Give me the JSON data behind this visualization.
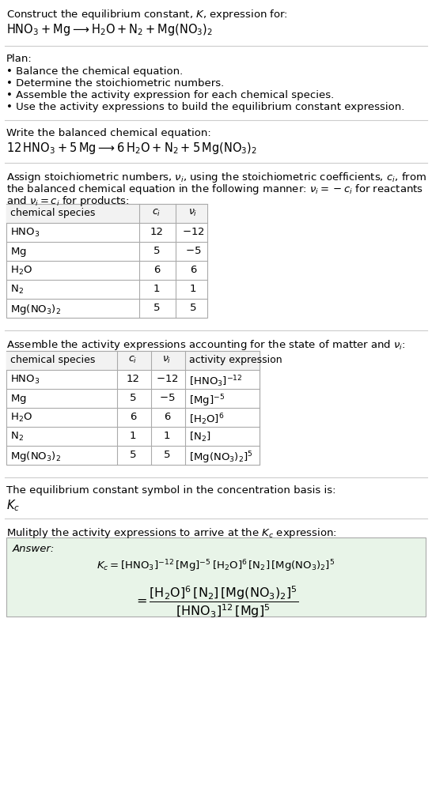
{
  "title_line1": "Construct the equilibrium constant, $K$, expression for:",
  "title_line2": "$\\mathrm{HNO_3} + \\mathrm{Mg} \\longrightarrow \\mathrm{H_2O} + \\mathrm{N_2} + \\mathrm{Mg(NO_3)_2}$",
  "plan_header": "Plan:",
  "plan_items": [
    "• Balance the chemical equation.",
    "• Determine the stoichiometric numbers.",
    "• Assemble the activity expression for each chemical species.",
    "• Use the activity expressions to build the equilibrium constant expression."
  ],
  "balanced_header": "Write the balanced chemical equation:",
  "balanced_eq": "$12\\,\\mathrm{HNO_3} + 5\\,\\mathrm{Mg} \\longrightarrow 6\\,\\mathrm{H_2O} + \\mathrm{N_2} + 5\\,\\mathrm{Mg(NO_3)_2}$",
  "stoich_line1": "Assign stoichiometric numbers, $\\nu_i$, using the stoichiometric coefficients, $c_i$, from",
  "stoich_line2": "the balanced chemical equation in the following manner: $\\nu_i = -c_i$ for reactants",
  "stoich_line3": "and $\\nu_i = c_i$ for products:",
  "table1_cols": [
    "chemical species",
    "$c_i$",
    "$\\nu_i$"
  ],
  "table1_rows": [
    [
      "$\\mathrm{HNO_3}$",
      "12",
      "$-12$"
    ],
    [
      "$\\mathrm{Mg}$",
      "5",
      "$-5$"
    ],
    [
      "$\\mathrm{H_2O}$",
      "6",
      "6"
    ],
    [
      "$\\mathrm{N_2}$",
      "1",
      "1"
    ],
    [
      "$\\mathrm{Mg(NO_3)_2}$",
      "5",
      "5"
    ]
  ],
  "activity_header": "Assemble the activity expressions accounting for the state of matter and $\\nu_i$:",
  "table2_cols": [
    "chemical species",
    "$c_i$",
    "$\\nu_i$",
    "activity expression"
  ],
  "table2_rows": [
    [
      "$\\mathrm{HNO_3}$",
      "12",
      "$-12$",
      "$[\\mathrm{HNO_3}]^{-12}$"
    ],
    [
      "$\\mathrm{Mg}$",
      "5",
      "$-5$",
      "$[\\mathrm{Mg}]^{-5}$"
    ],
    [
      "$\\mathrm{H_2O}$",
      "6",
      "6",
      "$[\\mathrm{H_2O}]^6$"
    ],
    [
      "$\\mathrm{N_2}$",
      "1",
      "1",
      "$[\\mathrm{N_2}]$"
    ],
    [
      "$\\mathrm{Mg(NO_3)_2}$",
      "5",
      "5",
      "$[\\mathrm{Mg(NO_3)_2}]^5$"
    ]
  ],
  "kc_header": "The equilibrium constant symbol in the concentration basis is:",
  "kc_symbol": "$K_c$",
  "multiply_header": "Mulitply the activity expressions to arrive at the $K_c$ expression:",
  "answer_label": "Answer:",
  "answer_line1": "$K_c = [\\mathrm{HNO_3}]^{-12}\\,[\\mathrm{Mg}]^{-5}\\,[\\mathrm{H_2O}]^6\\,[\\mathrm{N_2}]\\,[\\mathrm{Mg(NO_3)_2}]^5$",
  "answer_eq_lhs": "$= \\dfrac{[\\mathrm{H_2O}]^6\\,[\\mathrm{N_2}]\\,[\\mathrm{Mg(NO_3)_2}]^5}{[\\mathrm{HNO_3}]^{12}\\,[\\mathrm{Mg}]^5}$",
  "bg_color": "#ffffff",
  "answer_bg_color": "#e8f4e8",
  "sep_color": "#cccccc",
  "table_line_color": "#aaaaaa"
}
